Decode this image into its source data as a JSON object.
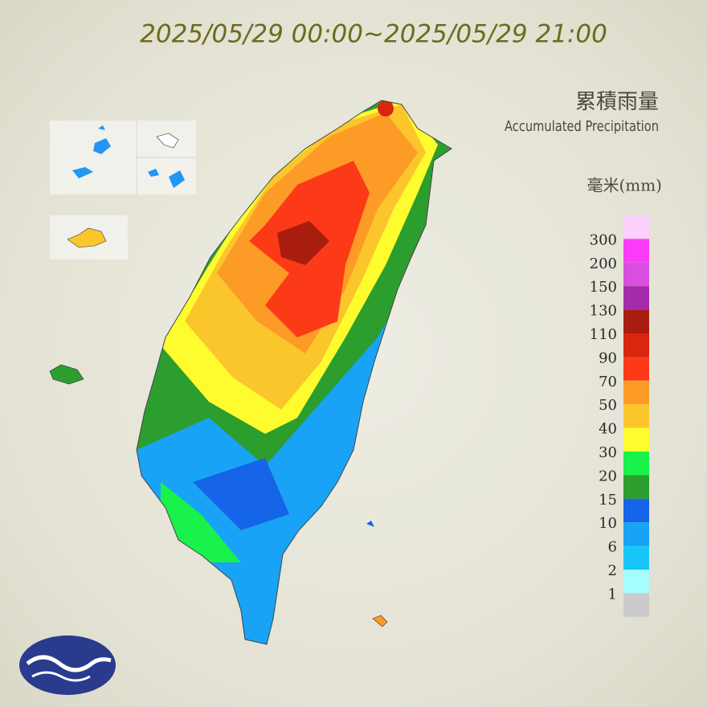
{
  "header": {
    "title": "2025/05/29 00:00~2025/05/29 21:00",
    "title_zh": "累積雨量",
    "title_en": "Accumulated Precipitation",
    "unit": "毫米(mm)"
  },
  "legend": {
    "values": [
      300,
      200,
      150,
      130,
      110,
      90,
      70,
      50,
      40,
      30,
      20,
      15,
      10,
      6,
      2,
      1
    ],
    "colors": [
      "#fbd0fb",
      "#fa3cf8",
      "#d84fe0",
      "#a52ca8",
      "#a81d0e",
      "#d9260e",
      "#fc3a18",
      "#fd9b27",
      "#fbc62b",
      "#fefc2e",
      "#18f24a",
      "#2c9e2e",
      "#1664e8",
      "#18a3f6",
      "#18c7f8",
      "#a5fdfd",
      "#cacaca"
    ]
  }
}
